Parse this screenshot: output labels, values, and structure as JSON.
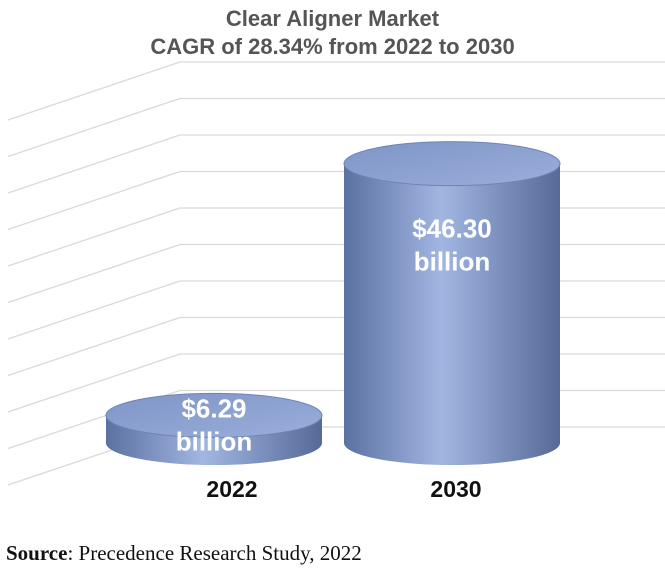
{
  "chart_data": {
    "type": "bar",
    "title": "Clear Aligner Market",
    "subtitle": "CAGR of 28.34% from 2022 to 2030",
    "categories": [
      "2022",
      "2030"
    ],
    "values": [
      6.29,
      46.3
    ],
    "data_labels": [
      {
        "value": "$6.29",
        "unit": "billion"
      },
      {
        "value": "$46.30",
        "unit": "billion"
      }
    ],
    "xlabel": "",
    "ylabel": "",
    "ylim": [
      0,
      58
    ],
    "grid": true,
    "legend": "none",
    "colors": {
      "bar": "#8ea4d2",
      "bar_dark": "#566c9c",
      "grid": "#d9d9d9",
      "title": "#555555"
    }
  },
  "source": {
    "label": "Source",
    "text": ": Precedence Research Study, 2022"
  }
}
